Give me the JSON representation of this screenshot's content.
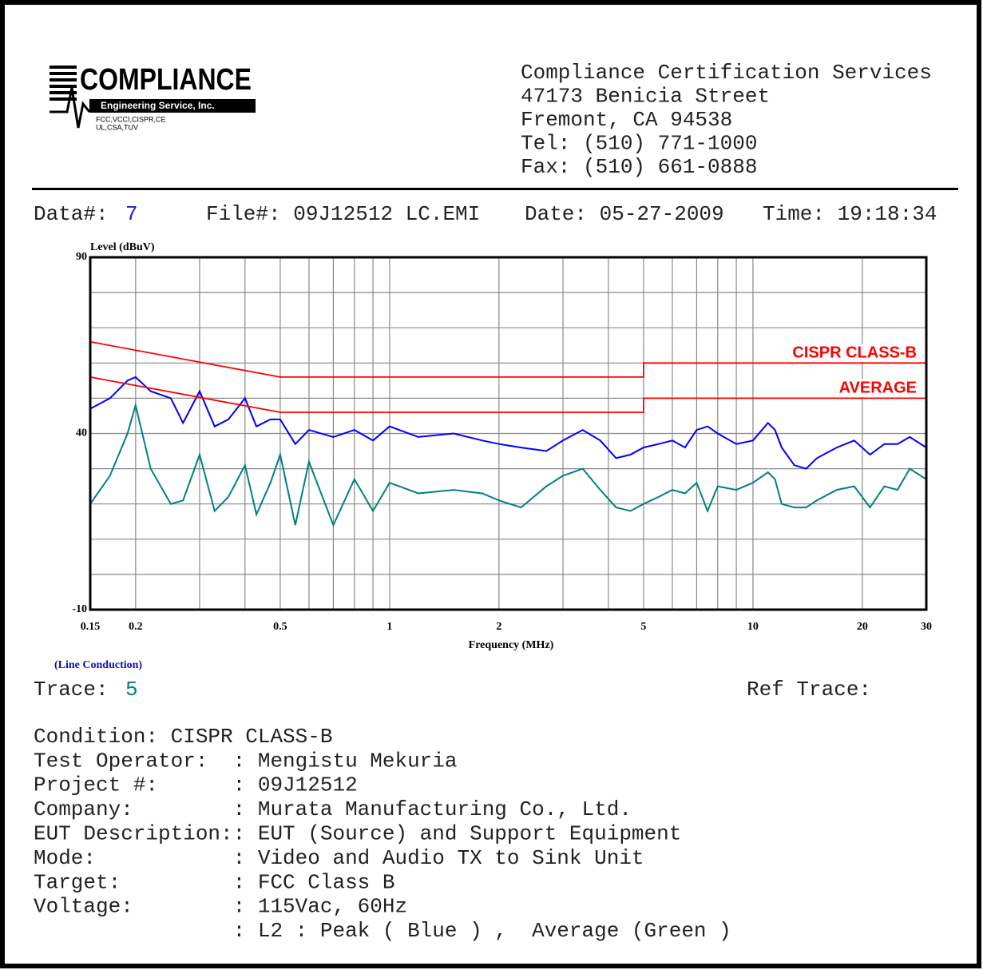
{
  "logo": {
    "name": "COMPLIANCE",
    "subtitle": "Engineering Service, Inc.",
    "certs": [
      "FCC,VCCI,CISPR,CE",
      "UL,CSA,TUV"
    ]
  },
  "address": [
    "Compliance Certification Services",
    "47173 Benicia Street",
    "Fremont, CA 94538",
    "Tel: (510) 771-1000",
    "Fax: (510) 661-0888"
  ],
  "info": {
    "data_label": "Data#:",
    "data": "7",
    "file": "File#: 09J12512 LC.EMI",
    "date": "Date: 05-27-2009",
    "time": "Time: 19:18:34"
  },
  "chart_data": {
    "type": "line",
    "xlabel": "Frequency (MHz)",
    "ylabel": "Level (dBuV)",
    "xscale": "log",
    "grid": true,
    "xlim": [
      0.15,
      30
    ],
    "ylim": [
      -10,
      90
    ],
    "xticks": [
      0.15,
      0.2,
      0.5,
      1,
      2,
      5,
      10,
      20,
      30
    ],
    "xminor": [
      0.3,
      0.4,
      0.6,
      0.7,
      0.8,
      0.9,
      3,
      4,
      6,
      7,
      8,
      9
    ],
    "yticks": [
      -10,
      40,
      90
    ],
    "yminor": [
      0,
      10,
      20,
      30,
      50,
      60,
      70,
      80
    ],
    "series": [
      {
        "color": "#0000ff",
        "x": [
          0.15,
          0.17,
          0.19,
          0.2,
          0.22,
          0.25,
          0.27,
          0.3,
          0.33,
          0.36,
          0.4,
          0.43,
          0.47,
          0.5,
          0.55,
          0.6,
          0.7,
          0.8,
          0.9,
          1,
          1.2,
          1.5,
          1.8,
          2,
          2.3,
          2.7,
          3,
          3.4,
          3.8,
          4.2,
          4.6,
          5,
          5.5,
          6,
          6.5,
          7,
          7.5,
          8,
          9,
          10,
          11,
          11.5,
          12,
          13,
          14,
          15,
          17,
          19,
          21,
          23,
          25,
          27,
          30
        ],
        "values": [
          47,
          50,
          55,
          56,
          52,
          50,
          43,
          52,
          42,
          44,
          50,
          42,
          44,
          44,
          37,
          41,
          39,
          41,
          38,
          42,
          39,
          40,
          38,
          37,
          36,
          35,
          38,
          41,
          38,
          33,
          34,
          36,
          37,
          38,
          36,
          41,
          42,
          40,
          37,
          38,
          43,
          41,
          36,
          31,
          30,
          33,
          36,
          38,
          34,
          37,
          37,
          39,
          36
        ]
      },
      {
        "color": "#008080",
        "x": [
          0.15,
          0.17,
          0.19,
          0.2,
          0.22,
          0.25,
          0.27,
          0.3,
          0.33,
          0.36,
          0.4,
          0.43,
          0.47,
          0.5,
          0.55,
          0.6,
          0.7,
          0.8,
          0.9,
          1,
          1.2,
          1.5,
          1.8,
          2,
          2.3,
          2.7,
          3,
          3.4,
          3.8,
          4.2,
          4.6,
          5,
          5.5,
          6,
          6.5,
          7,
          7.5,
          8,
          9,
          10,
          11,
          11.5,
          12,
          13,
          14,
          15,
          17,
          19,
          21,
          23,
          25,
          27,
          30
        ],
        "values": [
          20,
          28,
          40,
          48,
          30,
          20,
          21,
          34,
          18,
          22,
          31,
          17,
          26,
          34,
          14,
          32,
          14,
          27,
          18,
          26,
          23,
          24,
          23,
          21,
          19,
          25,
          28,
          30,
          24,
          19,
          18,
          20,
          22,
          24,
          23,
          26,
          18,
          25,
          24,
          26,
          29,
          27,
          20,
          19,
          19,
          21,
          24,
          25,
          19,
          25,
          24,
          30,
          27
        ]
      },
      {
        "name": "CISPR CLASS-B",
        "color": "#ff0000",
        "x": [
          0.15,
          0.5,
          5,
          5,
          30
        ],
        "values": [
          66,
          56,
          56,
          60,
          60
        ]
      },
      {
        "name": "AVERAGE",
        "color": "#ff0000",
        "x": [
          0.15,
          0.5,
          5,
          5,
          30
        ],
        "values": [
          56,
          46,
          46,
          50,
          50
        ]
      }
    ]
  },
  "caption": "(Line Conduction)",
  "trace": {
    "label": "Trace:",
    "value": "5",
    "ref_label": "Ref Trace:"
  },
  "details": [
    "Condition: CISPR CLASS-B",
    "Test Operator:  : Mengistu Mekuria",
    "Project #:      : 09J12512",
    "Company:        : Murata Manufacturing Co., Ltd.",
    "EUT Description:: EUT (Source) and Support Equipment",
    "Mode:           : Video and Audio TX to Sink Unit",
    "Target:         : FCC Class B",
    "Voltage:        : 115Vac, 60Hz",
    "                : L2 : Peak ( Blue ) ,  Average (Green )"
  ]
}
